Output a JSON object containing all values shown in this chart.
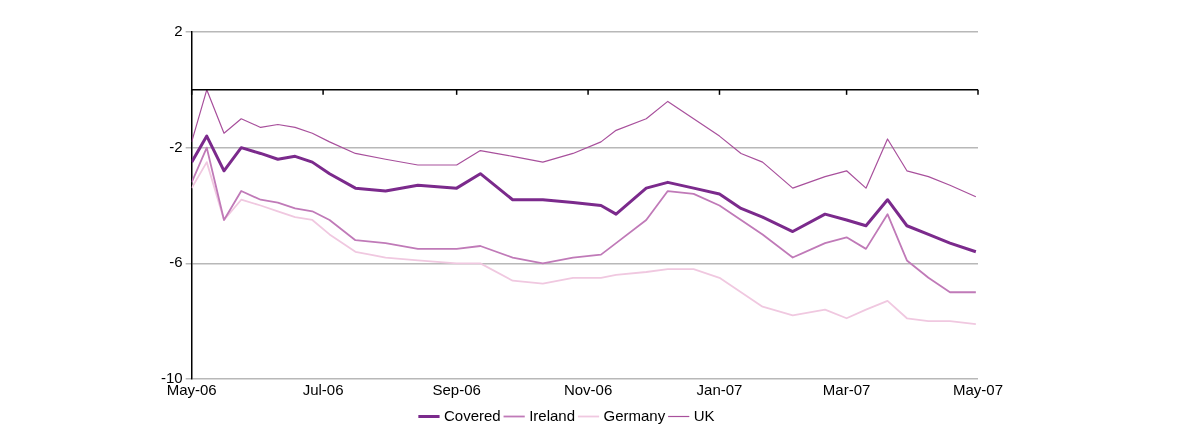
{
  "chart_data": {
    "type": "line",
    "x": [
      "2006-05-01",
      "2006-05-08",
      "2006-05-16",
      "2006-05-24",
      "2006-06-02",
      "2006-06-10",
      "2006-06-18",
      "2006-06-26",
      "2006-07-04",
      "2006-07-16",
      "2006-07-30",
      "2006-08-14",
      "2006-09-01",
      "2006-09-12",
      "2006-09-27",
      "2006-10-11",
      "2006-10-25",
      "2006-11-07",
      "2006-11-14",
      "2006-11-28",
      "2006-12-08",
      "2006-12-20",
      "2007-01-01",
      "2007-01-11",
      "2007-01-21",
      "2007-02-04",
      "2007-02-19",
      "2007-03-01",
      "2007-03-10",
      "2007-03-20",
      "2007-03-29",
      "2007-04-08",
      "2007-04-18",
      "2007-04-30"
    ],
    "series": [
      {
        "name": "Covered",
        "color": "#7b2a8c",
        "values": [
          -2.5,
          -1.6,
          -2.8,
          -2.0,
          -2.2,
          -2.4,
          -2.3,
          -2.5,
          -2.9,
          -3.4,
          -3.5,
          -3.3,
          -3.4,
          -2.9,
          -3.8,
          -3.8,
          -3.9,
          -4.0,
          -4.3,
          -3.4,
          -3.2,
          -3.4,
          -3.6,
          -4.1,
          -4.4,
          -4.9,
          -4.3,
          -4.5,
          -4.7,
          -3.8,
          -4.7,
          -5.0,
          -5.3,
          -5.6
        ]
      },
      {
        "name": "Ireland",
        "color": "#c07ab8",
        "values": [
          -3.2,
          -2.0,
          -4.5,
          -3.5,
          -3.8,
          -3.9,
          -4.1,
          -4.2,
          -4.5,
          -5.2,
          -5.3,
          -5.5,
          -5.5,
          -5.4,
          -5.8,
          -6.0,
          -5.8,
          -5.7,
          -5.3,
          -4.5,
          -3.5,
          -3.6,
          -4.0,
          -4.5,
          -5.0,
          -5.8,
          -5.3,
          -5.1,
          -5.5,
          -4.3,
          -5.9,
          -6.5,
          -7.0,
          -7.0
        ]
      },
      {
        "name": "Germany",
        "color": "#f0c8e0",
        "values": [
          -3.4,
          -2.5,
          -4.5,
          -3.8,
          -4.0,
          -4.2,
          -4.4,
          -4.5,
          -5.0,
          -5.6,
          -5.8,
          -5.9,
          -6.0,
          -6.0,
          -6.6,
          -6.7,
          -6.5,
          -6.5,
          -6.4,
          -6.3,
          -6.2,
          -6.2,
          -6.5,
          -7.0,
          -7.5,
          -7.8,
          -7.6,
          -7.9,
          -7.6,
          -7.3,
          -7.9,
          -8.0,
          -8.0,
          -8.1
        ]
      },
      {
        "name": "UK",
        "color": "#a8509c",
        "values": [
          -1.8,
          0,
          -1.5,
          -1.0,
          -1.3,
          -1.2,
          -1.3,
          -1.5,
          -1.8,
          -2.2,
          -2.4,
          -2.6,
          -2.6,
          -2.1,
          -2.3,
          -2.5,
          -2.2,
          -1.8,
          -1.4,
          -1.0,
          -0.4,
          -1.0,
          -1.6,
          -2.2,
          -2.5,
          -3.4,
          -3.0,
          -2.8,
          -3.4,
          -1.7,
          -2.8,
          -3.0,
          -3.3,
          -3.7
        ]
      }
    ],
    "xlim": [
      "2006-05-01",
      "2007-05-01"
    ],
    "xticks": [
      {
        "value": "2006-05-01",
        "label": "May-06"
      },
      {
        "value": "2006-07-01",
        "label": "Jul-06"
      },
      {
        "value": "2006-09-01",
        "label": "Sep-06"
      },
      {
        "value": "2006-11-01",
        "label": "Nov-06"
      },
      {
        "value": "2007-01-01",
        "label": "Jan-07"
      },
      {
        "value": "2007-03-01",
        "label": "Mar-07"
      },
      {
        "value": "2007-05-01",
        "label": "May-07"
      }
    ],
    "ylim": [
      -10,
      2
    ],
    "yticks": [
      2,
      -2,
      -6,
      -10
    ],
    "ref_lines": [
      {
        "axis": "y",
        "value": 0,
        "color": "#000000"
      }
    ],
    "grid": "y",
    "legend": "bottom",
    "marker": "none",
    "line_style": "solid"
  }
}
